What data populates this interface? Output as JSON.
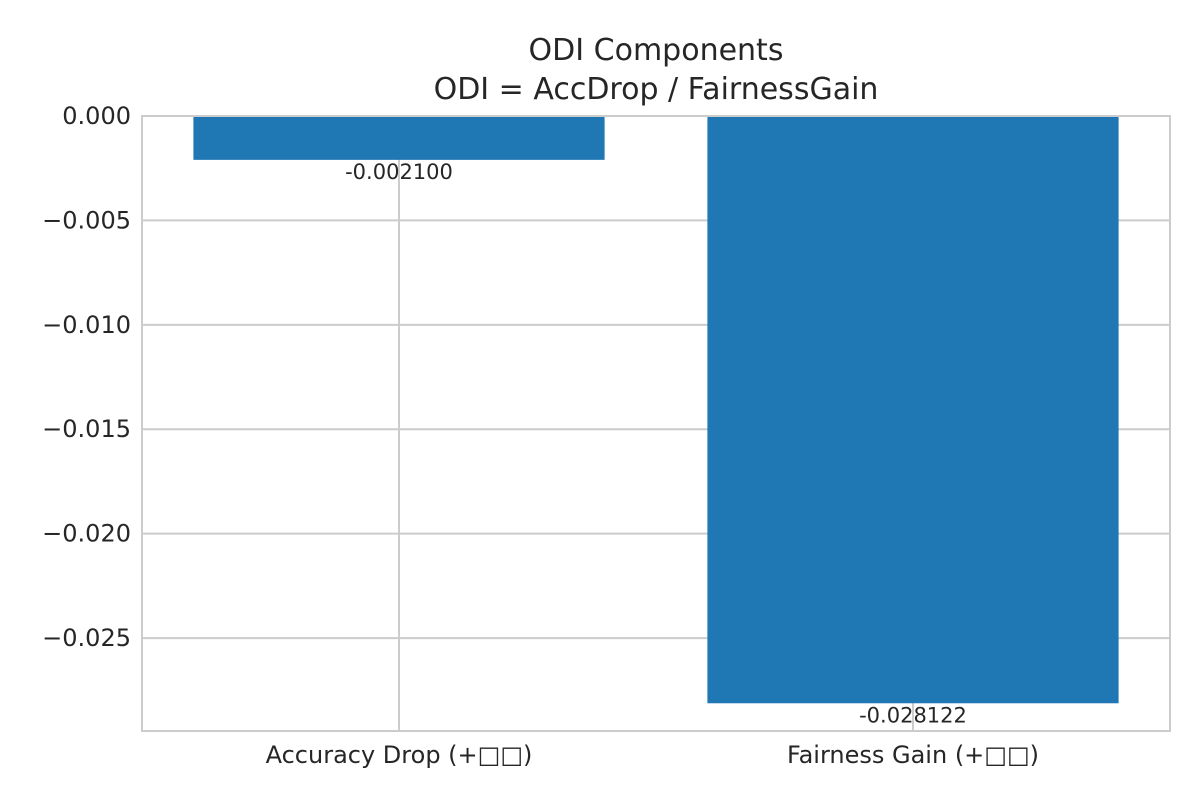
{
  "chart_data": {
    "type": "bar",
    "title": "ODI Components",
    "subtitle": "ODI = AccDrop / FairnessGain",
    "categories": [
      "Accuracy Drop (+□□)",
      "Fairness Gain (+□□)"
    ],
    "values": [
      -0.0021,
      -0.028122
    ],
    "value_labels": [
      "-0.002100",
      "-0.028122"
    ],
    "xlabel": "",
    "ylabel": "",
    "ylim": [
      -0.02945,
      0.0
    ],
    "yticks": [
      0.0,
      -0.005,
      -0.01,
      -0.015,
      -0.02,
      -0.025
    ],
    "ytick_labels": [
      "0.000",
      "−0.005",
      "−0.010",
      "−0.015",
      "−0.020",
      "−0.025"
    ],
    "grid": true,
    "legend": "none",
    "colors": {
      "bar": "#1f77b4",
      "grid": "#cccccc",
      "axes": "#cccccc",
      "text": "#262626"
    }
  }
}
